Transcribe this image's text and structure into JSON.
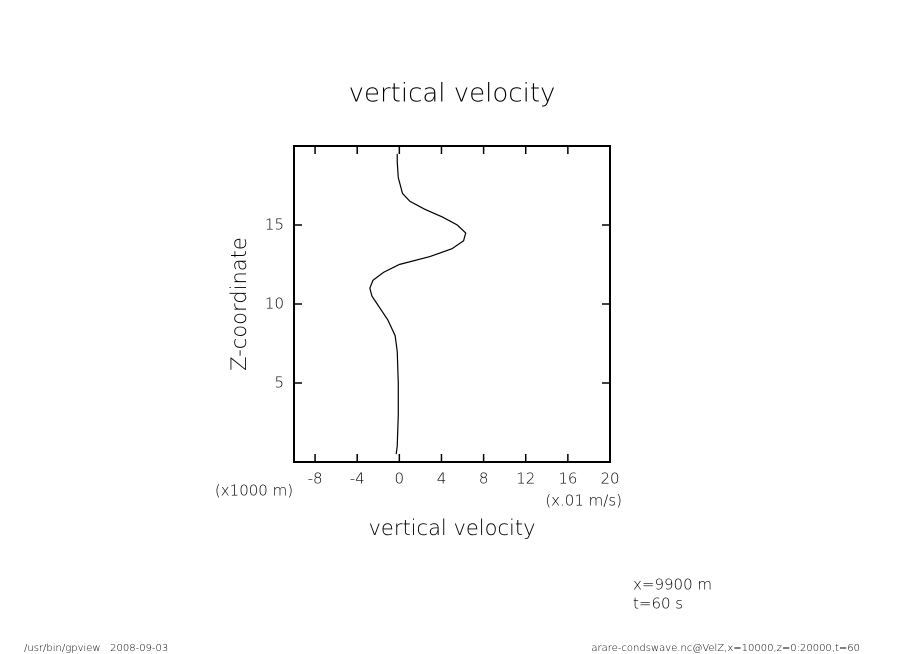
{
  "chart_data": {
    "type": "line",
    "orientation": "vertical",
    "title": "vertical velocity",
    "x_label": "vertical velocity",
    "x_unit": "(x.01 m/s)",
    "y_label": "Z-coordinate",
    "y_unit": "(x1000 m)",
    "xlim": [
      -10,
      20
    ],
    "xticks": [
      -8,
      -4,
      0,
      4,
      8,
      12,
      16,
      20
    ],
    "ylim": [
      0,
      20
    ],
    "yticks": [
      5,
      10,
      15
    ],
    "color": "#000000",
    "z": [
      0.5,
      1,
      3,
      5,
      7,
      8,
      9,
      10,
      10.5,
      11,
      11.5,
      12,
      12.5,
      13,
      13.5,
      14,
      14.5,
      15,
      15.5,
      16,
      16.5,
      17,
      17.5,
      18,
      19,
      19.5
    ],
    "values": [
      -0.3,
      -0.2,
      -0.1,
      -0.1,
      -0.2,
      -0.4,
      -1.1,
      -2.1,
      -2.6,
      -2.8,
      -2.5,
      -1.5,
      0,
      2.9,
      5,
      6.1,
      6.3,
      5.5,
      4.1,
      2.4,
      1,
      0.3,
      0.1,
      -0.1,
      -0.2,
      -0.2
    ],
    "annotations": [
      "x=9900 m",
      "t=60 s"
    ],
    "footer_left": "/usr/bin/gpview   2008-09-03",
    "footer_right": "arare-condswave.nc@VelZ,x=10000,z=0:20000,t=60"
  }
}
